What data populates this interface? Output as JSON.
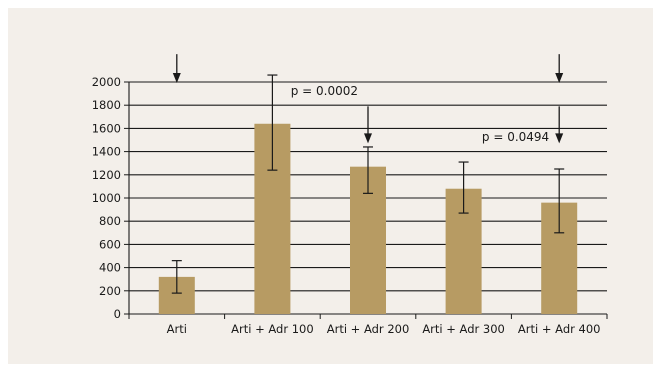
{
  "chart_data": {
    "type": "bar",
    "title": "",
    "xlabel": "",
    "ylabel": "",
    "ylim": [
      0,
      2000
    ],
    "yticks": [
      0,
      200,
      400,
      600,
      800,
      1000,
      1200,
      1400,
      1600,
      1800,
      2000
    ],
    "grid": true,
    "legend": "none",
    "categories": [
      "Arti",
      "Arti + Adr 100",
      "Arti + Adr 200",
      "Arti + Adr 300",
      "Arti + Adr 400"
    ],
    "values": [
      320,
      1640,
      1270,
      1080,
      960
    ],
    "error_low": [
      180,
      1240,
      1040,
      870,
      700
    ],
    "error_high": [
      460,
      2060,
      1440,
      1310,
      1250
    ],
    "bar_color": "#b79b63",
    "annotations": [
      {
        "text": "p = 0.0002",
        "category_index": 2
      },
      {
        "text": "p = 0.0494",
        "category_index": 4
      }
    ],
    "arrows": [
      {
        "category_index": 0,
        "from": 2240,
        "to": 2000
      },
      {
        "category_index": 4,
        "from": 2240,
        "to": 2000
      },
      {
        "category_index": 2,
        "from": 1790,
        "to": 1480
      },
      {
        "category_index": 4,
        "from": 1790,
        "to": 1480
      }
    ]
  }
}
